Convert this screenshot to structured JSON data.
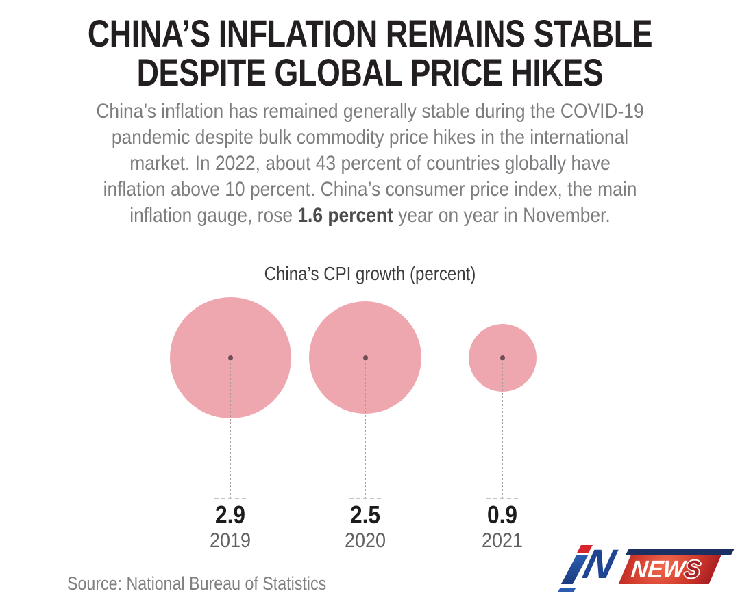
{
  "headline": {
    "line1": "CHINA’S INFLATION REMAINS STABLE",
    "line2": "DESPITE GLOBAL PRICE HIKES"
  },
  "intro": {
    "lines": [
      "China’s inflation has remained generally stable during the COVID-19",
      "pandemic despite bulk commodity price hikes in the international",
      "market. In 2022, about 43 percent of countries globally have",
      "inflation above 10 percent. China’s consumer price index, the main"
    ],
    "last_line": {
      "pre": "inflation gauge, rose ",
      "bold": "1.6 percent",
      "post": " year on year in November."
    }
  },
  "chart_data": {
    "type": "bubble",
    "title": "China’s CPI growth (percent)",
    "categories": [
      "2019",
      "2020",
      "2021"
    ],
    "values": [
      2.9,
      2.5,
      0.9
    ],
    "series": [
      {
        "name": "China CPI growth, year-on-year (percent)",
        "values": [
          2.9,
          2.5,
          0.9
        ]
      }
    ],
    "encoding": "circle area proportional to value; value label and year below each bubble",
    "bubble_color": "#efa7af",
    "legend": false,
    "grid": false
  },
  "source_line": "Source: National Bureau of Statistics",
  "logo": {
    "alt": "iN NEWS",
    "n_letter": "N",
    "news_main": "NEW",
    "news_s": "S"
  },
  "colors": {
    "headline": "#231f20",
    "body_text": "#7d7d80",
    "body_bold": "#4c4c4e",
    "chart_title": "#3c3c3e",
    "bubble": "#efa7af",
    "bubble_center_dot": "#6e4e52",
    "value_label": "#1c1c1e",
    "year_label": "#5f6062",
    "source_text": "#7e8082",
    "logo_blue": "#1e4493",
    "logo_red": "#c22a26",
    "logo_navy": "#1c2f63"
  }
}
